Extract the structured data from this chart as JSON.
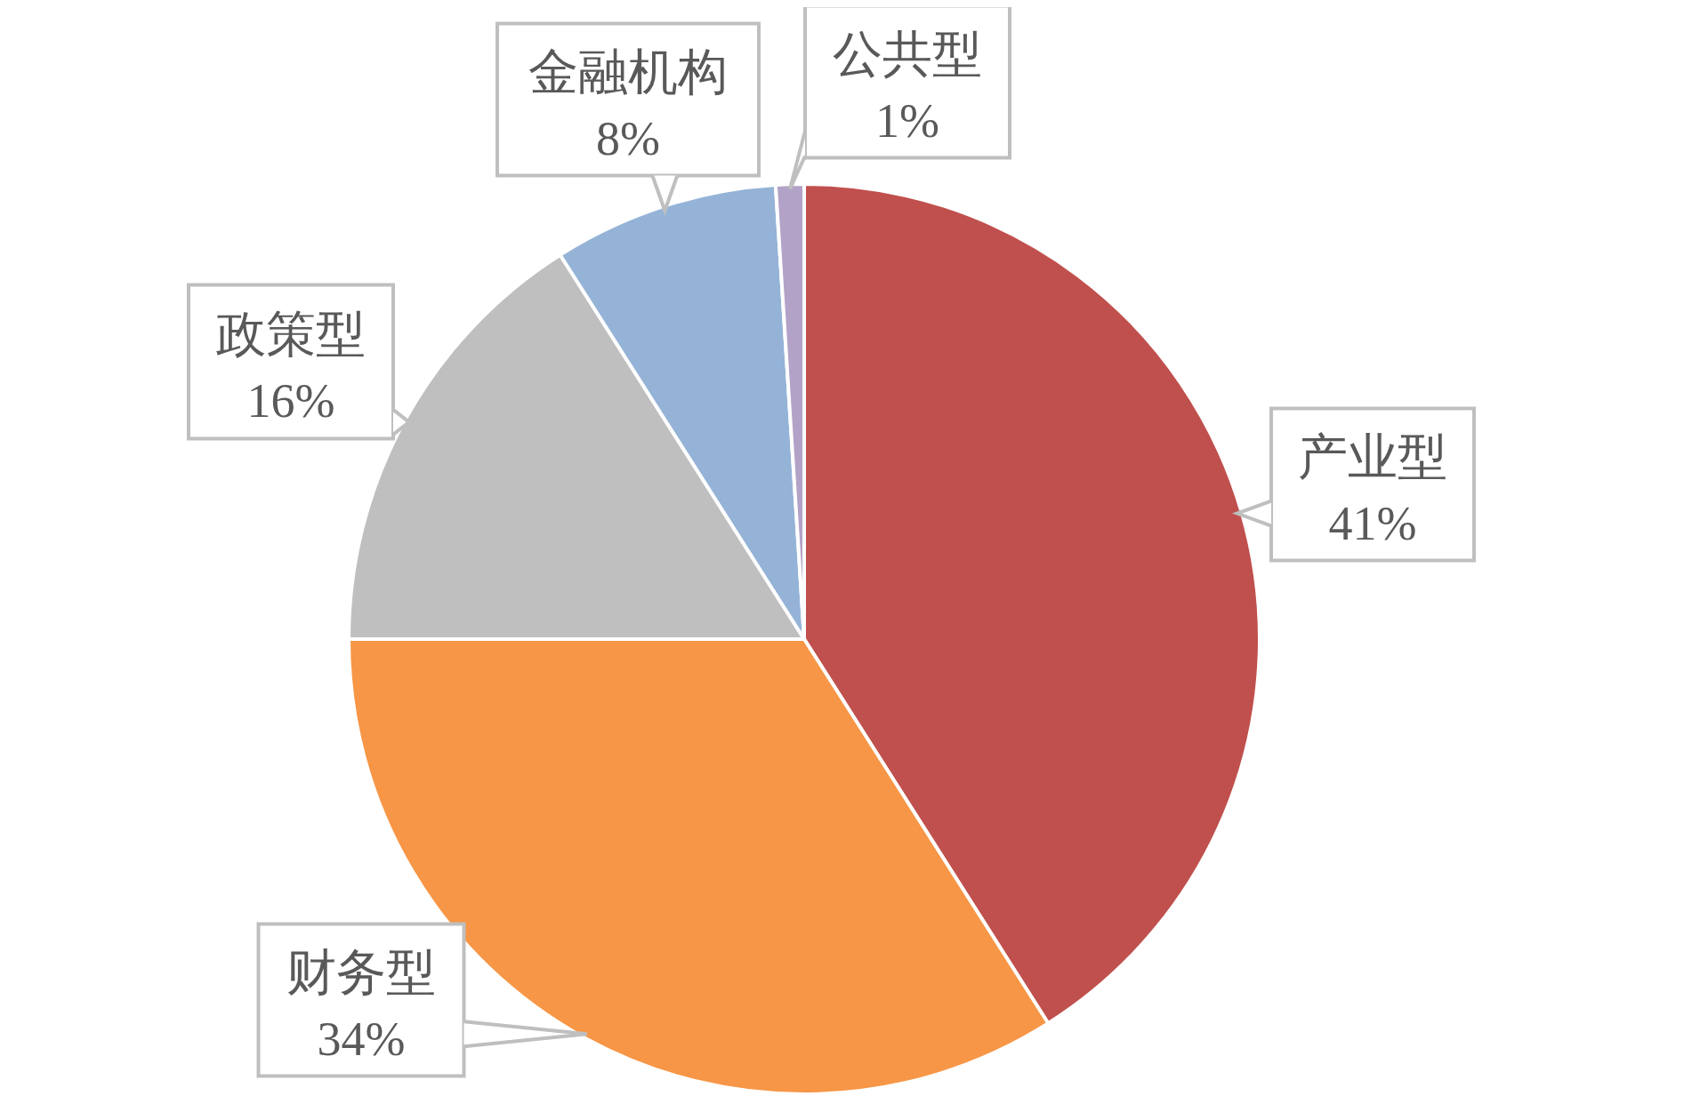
{
  "chart_data": {
    "type": "pie",
    "categories": [
      "产业型",
      "财务型",
      "政策型",
      "金融机构",
      "公共型"
    ],
    "values": [
      41,
      34,
      16,
      8,
      1
    ],
    "value_labels": [
      "41%",
      "34%",
      "16%",
      "8%",
      "1%"
    ],
    "colors": [
      "#c0504d",
      "#f79646",
      "#bfbfbf",
      "#95b3d7",
      "#b3a2c7"
    ]
  }
}
